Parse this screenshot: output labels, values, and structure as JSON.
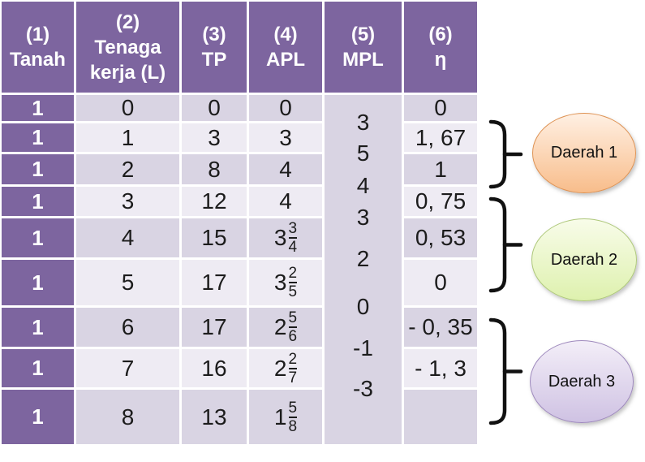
{
  "table": {
    "headers": [
      {
        "lines": [
          "(1)",
          "Tanah"
        ]
      },
      {
        "lines": [
          "(2)",
          "Tenaga",
          "kerja (L)"
        ]
      },
      {
        "lines": [
          "(3)",
          "TP"
        ]
      },
      {
        "lines": [
          "(4)",
          "APL"
        ]
      },
      {
        "lines": [
          "(5)",
          "MPL"
        ]
      },
      {
        "lines": [
          "(6)",
          "η"
        ]
      }
    ],
    "rows": [
      {
        "tanah": "1",
        "tenaga_kerja": "0",
        "tp": "0",
        "apl": "0",
        "eta": "0"
      },
      {
        "tanah": "1",
        "tenaga_kerja": "1",
        "tp": "3",
        "apl": "3",
        "eta": "1, 67"
      },
      {
        "tanah": "1",
        "tenaga_kerja": "2",
        "tp": "8",
        "apl": "4",
        "eta": "1"
      },
      {
        "tanah": "1",
        "tenaga_kerja": "3",
        "tp": "12",
        "apl": "4",
        "eta": "0, 75"
      },
      {
        "tanah": "1",
        "tenaga_kerja": "4",
        "tp": "15",
        "apl": {
          "whole": "3",
          "num": "3",
          "den": "4"
        },
        "eta": "0, 53"
      },
      {
        "tanah": "1",
        "tenaga_kerja": "5",
        "tp": "17",
        "apl": {
          "whole": "3",
          "num": "2",
          "den": "5"
        },
        "eta": "0"
      },
      {
        "tanah": "1",
        "tenaga_kerja": "6",
        "tp": "17",
        "apl": {
          "whole": "2",
          "num": "5",
          "den": "6"
        },
        "eta": "- 0, 35"
      },
      {
        "tanah": "1",
        "tenaga_kerja": "7",
        "tp": "16",
        "apl": {
          "whole": "2",
          "num": "2",
          "den": "7"
        },
        "eta": "- 1, 3"
      },
      {
        "tanah": "1",
        "tenaga_kerja": "8",
        "tp": "13",
        "apl": {
          "whole": "1",
          "num": "5",
          "den": "8"
        },
        "eta": ""
      }
    ],
    "mpl_values": [
      "3",
      "5",
      "4",
      "3",
      "2",
      "0",
      "-1",
      "-3"
    ]
  },
  "regions": [
    {
      "label": "Daerah 1",
      "fill_top": "#fff0e3",
      "fill_bottom": "#f8bd8b",
      "border": "#de9253"
    },
    {
      "label": "Daerah 2",
      "fill_top": "#f8fce9",
      "fill_bottom": "#def1ae",
      "border": "#aec87a"
    },
    {
      "label": "Daerah 3",
      "fill_top": "#f3eef8",
      "fill_bottom": "#cfc2e3",
      "border": "#9e89bd"
    }
  ],
  "colors": {
    "header_purple": "#7d659f",
    "band_dark": "#d9d4e3",
    "band_light": "#eeebf3",
    "text": "#1c1c1c",
    "brace": "#111111",
    "background": "#ffffff"
  },
  "chart_data": {
    "type": "table",
    "columns": [
      "(1) Tanah",
      "(2) Tenaga kerja (L)",
      "(3) TP",
      "(4) APL",
      "(5) MPL",
      "(6) η"
    ],
    "rows": [
      [
        "1",
        "0",
        "0",
        "0",
        "",
        "0"
      ],
      [
        "1",
        "1",
        "3",
        "3",
        "",
        "1, 67"
      ],
      [
        "1",
        "2",
        "8",
        "4",
        "",
        "1"
      ],
      [
        "1",
        "3",
        "12",
        "4",
        "",
        "0, 75"
      ],
      [
        "1",
        "4",
        "15",
        "3 3/4",
        "",
        "0, 53"
      ],
      [
        "1",
        "5",
        "17",
        "3 2/5",
        "",
        "0"
      ],
      [
        "1",
        "6",
        "17",
        "2 5/6",
        "",
        "- 0, 35"
      ],
      [
        "1",
        "7",
        "16",
        "2 2/7",
        "",
        "- 1, 3"
      ],
      [
        "1",
        "8",
        "13",
        "1 5/8",
        "",
        ""
      ]
    ],
    "mpl_between_rows": [
      "3",
      "5",
      "4",
      "3",
      "2",
      "0",
      "-1",
      "-3"
    ],
    "annotations": [
      {
        "label": "Daerah 1",
        "brace_covers_eta_values": [
          "1, 67",
          "1"
        ]
      },
      {
        "label": "Daerah 2",
        "brace_covers_eta_values": [
          "0, 75",
          "0, 53",
          "0"
        ]
      },
      {
        "label": "Daerah 3",
        "brace_covers_eta_values": [
          "- 0, 35",
          "- 1, 3",
          ""
        ]
      }
    ]
  }
}
